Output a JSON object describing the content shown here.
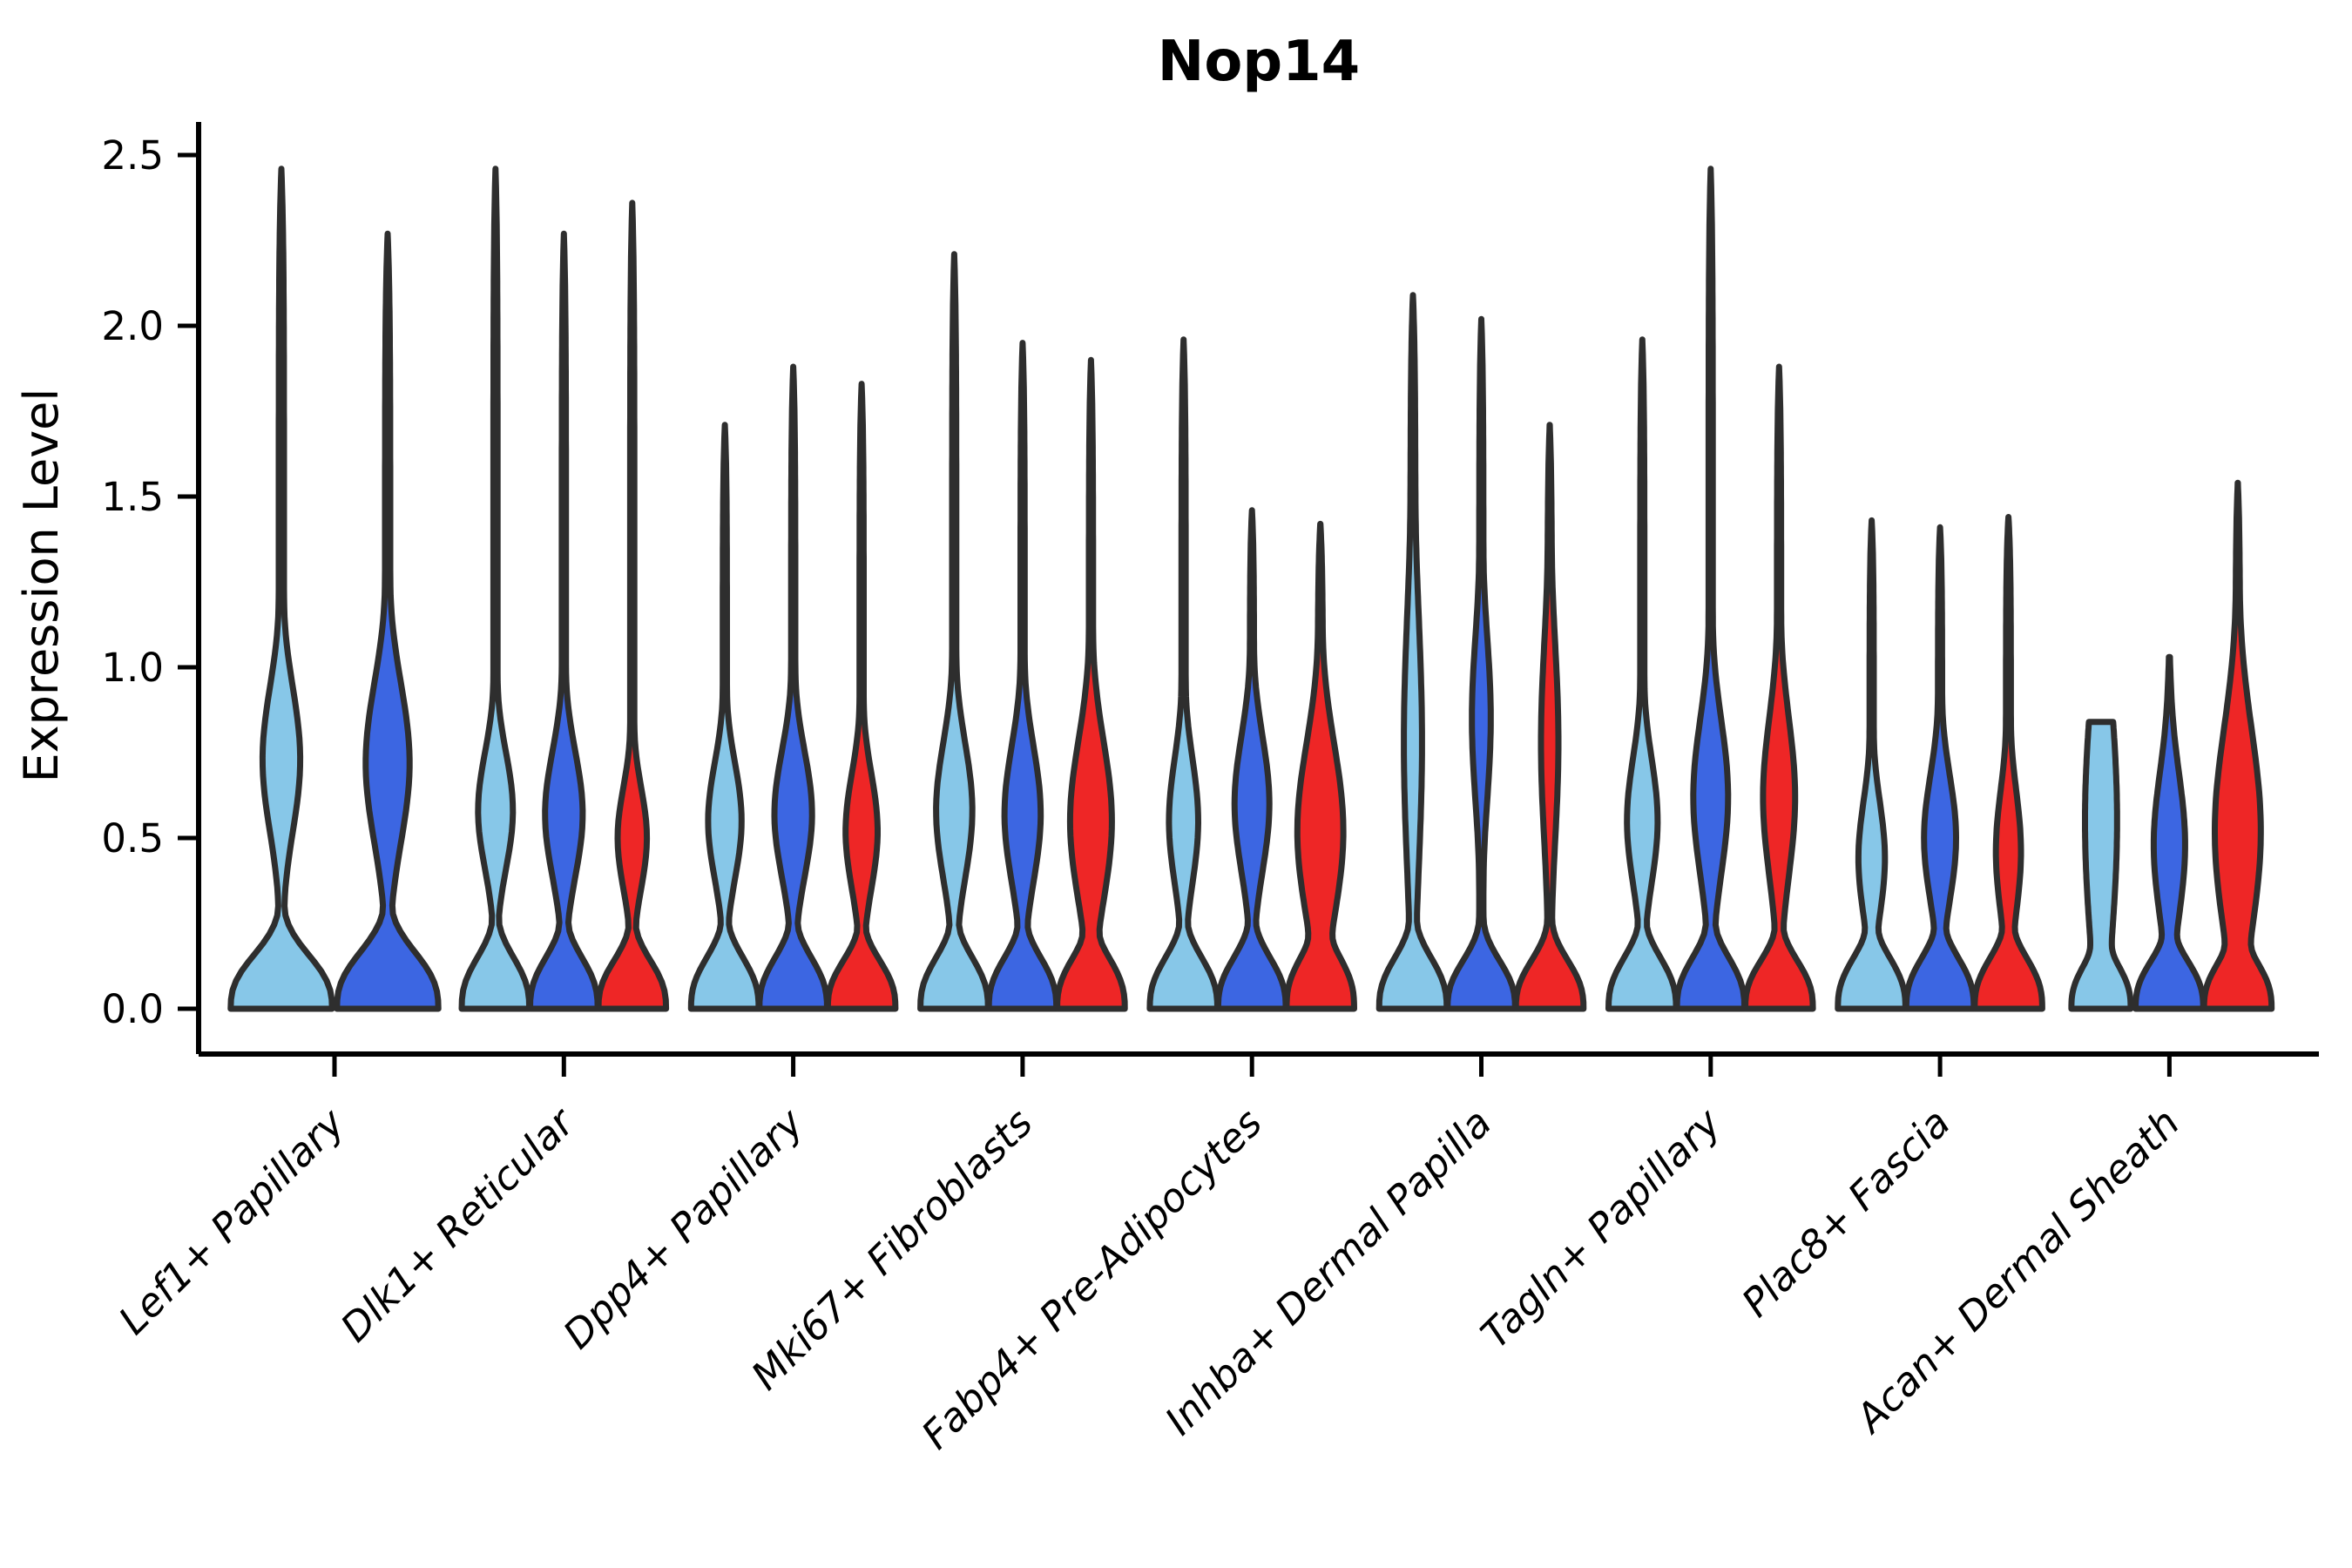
{
  "chart_data": {
    "type": "violin",
    "title": "Nop14",
    "xlabel": "",
    "ylabel": "Expression Level",
    "ylim": [
      0,
      2.5
    ],
    "yticks": [
      0,
      0.5,
      1.0,
      1.5,
      2.0,
      2.5
    ],
    "ytick_labels": [
      "0.0",
      "0.5",
      "1.0",
      "1.5",
      "2.0",
      "2.5"
    ],
    "grid": false,
    "legend_position": "none",
    "categories": [
      "Lef1+ Papillary",
      "Dlk1+ Reticular",
      "Dpp4+ Papillary",
      "Mki67+ Fibroblasts",
      "Fabp4+ Pre-Adipocytes",
      "Inhba+ Dermal Papilla",
      "Tagln+ Papillary",
      "Plac8+ Fascia",
      "Acan+ Dermal Sheath"
    ],
    "palette": {
      "light_blue": "#87C7E8",
      "royal_blue": "#3C66E2",
      "red": "#EE2626",
      "outline": "#2E2E2E"
    },
    "groups": [
      {
        "category": "Lef1+ Papillary",
        "violins": [
          {
            "color_key": "light_blue",
            "max_expression": 2.46,
            "density_profile": {
              "wb": 0.97,
              "sb": 0.19,
              "wm": 0.36,
              "cm": 0.73,
              "sm": 0.3,
              "wt": 0.05
            }
          },
          {
            "color_key": "royal_blue",
            "max_expression": 2.27,
            "density_profile": {
              "wb": 0.97,
              "sb": 0.2,
              "wm": 0.42,
              "cm": 0.72,
              "sm": 0.33,
              "wt": 0.05
            }
          }
        ]
      },
      {
        "category": "Dlk1+ Reticular",
        "violins": [
          {
            "color_key": "light_blue",
            "max_expression": 2.46,
            "density_profile": {
              "wb": 0.97,
              "sb": 0.18,
              "wm": 0.5,
              "cm": 0.58,
              "sm": 0.24,
              "wt": 0.06
            }
          },
          {
            "color_key": "royal_blue",
            "max_expression": 2.27,
            "density_profile": {
              "wb": 0.97,
              "sb": 0.18,
              "wm": 0.54,
              "cm": 0.57,
              "sm": 0.26,
              "wt": 0.06
            }
          },
          {
            "color_key": "red",
            "max_expression": 2.36,
            "density_profile": {
              "wb": 0.97,
              "sb": 0.17,
              "wm": 0.42,
              "cm": 0.5,
              "sm": 0.21,
              "wt": 0.06
            }
          }
        ]
      },
      {
        "category": "Dpp4+ Papillary",
        "violins": [
          {
            "color_key": "light_blue",
            "max_expression": 1.71,
            "density_profile": {
              "wb": 0.97,
              "sb": 0.18,
              "wm": 0.48,
              "cm": 0.55,
              "sm": 0.24,
              "wt": 0.06
            }
          },
          {
            "color_key": "royal_blue",
            "max_expression": 1.88,
            "density_profile": {
              "wb": 0.97,
              "sb": 0.18,
              "wm": 0.54,
              "cm": 0.57,
              "sm": 0.26,
              "wt": 0.06
            }
          },
          {
            "color_key": "red",
            "max_expression": 1.83,
            "density_profile": {
              "wb": 0.97,
              "sb": 0.17,
              "wm": 0.46,
              "cm": 0.52,
              "sm": 0.24,
              "wt": 0.06
            }
          }
        ]
      },
      {
        "category": "Mki67+ Fibroblasts",
        "violins": [
          {
            "color_key": "light_blue",
            "max_expression": 2.21,
            "density_profile": {
              "wb": 0.97,
              "sb": 0.18,
              "wm": 0.52,
              "cm": 0.58,
              "sm": 0.28,
              "wt": 0.06
            }
          },
          {
            "color_key": "royal_blue",
            "max_expression": 1.95,
            "density_profile": {
              "wb": 0.97,
              "sb": 0.18,
              "wm": 0.52,
              "cm": 0.57,
              "sm": 0.28,
              "wt": 0.06
            }
          },
          {
            "color_key": "red",
            "max_expression": 1.9,
            "density_profile": {
              "wb": 0.97,
              "sb": 0.18,
              "wm": 0.6,
              "cm": 0.55,
              "sm": 0.33,
              "wt": 0.06
            }
          }
        ]
      },
      {
        "category": "Fabp4+ Pre-Adipocytes",
        "violins": [
          {
            "color_key": "light_blue",
            "max_expression": 1.96,
            "density_profile": {
              "wb": 0.97,
              "sb": 0.18,
              "wm": 0.42,
              "cm": 0.55,
              "sm": 0.26,
              "wt": 0.06
            }
          },
          {
            "color_key": "royal_blue",
            "max_expression": 1.46,
            "density_profile": {
              "wb": 0.97,
              "sb": 0.18,
              "wm": 0.5,
              "cm": 0.6,
              "sm": 0.28,
              "wt": 0.06
            }
          },
          {
            "color_key": "red",
            "max_expression": 1.42,
            "density_profile": {
              "wb": 0.97,
              "sb": 0.19,
              "wm": 0.66,
              "cm": 0.52,
              "sm": 0.36,
              "wt": 0.07
            }
          }
        ]
      },
      {
        "category": "Inhba+ Dermal Papilla",
        "violins": [
          {
            "color_key": "light_blue",
            "max_expression": 2.09,
            "density_profile": {
              "wb": 0.97,
              "sb": 0.18,
              "wm": 0.26,
              "cm": 0.78,
              "sm": 0.55,
              "wt": 0.07
            }
          },
          {
            "color_key": "royal_blue",
            "max_expression": 2.02,
            "density_profile": {
              "wb": 0.97,
              "sb": 0.17,
              "wm": 0.27,
              "cm": 0.85,
              "sm": 0.35,
              "wt": 0.06
            }
          },
          {
            "color_key": "red",
            "max_expression": 1.71,
            "density_profile": {
              "wb": 0.97,
              "sb": 0.17,
              "wm": 0.25,
              "cm": 0.78,
              "sm": 0.42,
              "wt": 0.06
            }
          }
        ]
      },
      {
        "category": "Tagln+ Papillary",
        "violins": [
          {
            "color_key": "light_blue",
            "max_expression": 1.96,
            "density_profile": {
              "wb": 0.97,
              "sb": 0.18,
              "wm": 0.44,
              "cm": 0.55,
              "sm": 0.26,
              "wt": 0.06
            }
          },
          {
            "color_key": "royal_blue",
            "max_expression": 2.46,
            "density_profile": {
              "wb": 0.97,
              "sb": 0.18,
              "wm": 0.5,
              "cm": 0.62,
              "sm": 0.32,
              "wt": 0.06
            }
          },
          {
            "color_key": "red",
            "max_expression": 1.88,
            "density_profile": {
              "wb": 0.97,
              "sb": 0.17,
              "wm": 0.46,
              "cm": 0.62,
              "sm": 0.33,
              "wt": 0.06
            }
          }
        ]
      },
      {
        "category": "Plac8+ Fascia",
        "violins": [
          {
            "color_key": "light_blue",
            "max_expression": 1.43,
            "density_profile": {
              "wb": 0.97,
              "sb": 0.18,
              "wm": 0.38,
              "cm": 0.44,
              "sm": 0.24,
              "wt": 0.06
            }
          },
          {
            "color_key": "royal_blue",
            "max_expression": 1.41,
            "density_profile": {
              "wb": 0.97,
              "sb": 0.18,
              "wm": 0.46,
              "cm": 0.5,
              "sm": 0.26,
              "wt": 0.06
            }
          },
          {
            "color_key": "red",
            "max_expression": 1.44,
            "density_profile": {
              "wb": 0.97,
              "sb": 0.18,
              "wm": 0.36,
              "cm": 0.46,
              "sm": 0.26,
              "wt": 0.07
            }
          }
        ]
      },
      {
        "category": "Acan+ Dermal Sheath",
        "violins": [
          {
            "color_key": "light_blue",
            "max_expression": 0.84,
            "density_profile": {
              "wb": 0.85,
              "sb": 0.16,
              "wm": 0.46,
              "cm": 0.55,
              "sm": 0.55,
              "wt": 0.0
            },
            "flat_top": true
          },
          {
            "color_key": "royal_blue",
            "max_expression": 1.03,
            "density_profile": {
              "wb": 0.97,
              "sb": 0.17,
              "wm": 0.45,
              "cm": 0.48,
              "sm": 0.3,
              "wt": 0.05
            }
          },
          {
            "color_key": "red",
            "max_expression": 1.54,
            "density_profile": {
              "wb": 0.97,
              "sb": 0.17,
              "wm": 0.66,
              "cm": 0.52,
              "sm": 0.42,
              "wt": 0.06
            }
          }
        ]
      }
    ]
  }
}
